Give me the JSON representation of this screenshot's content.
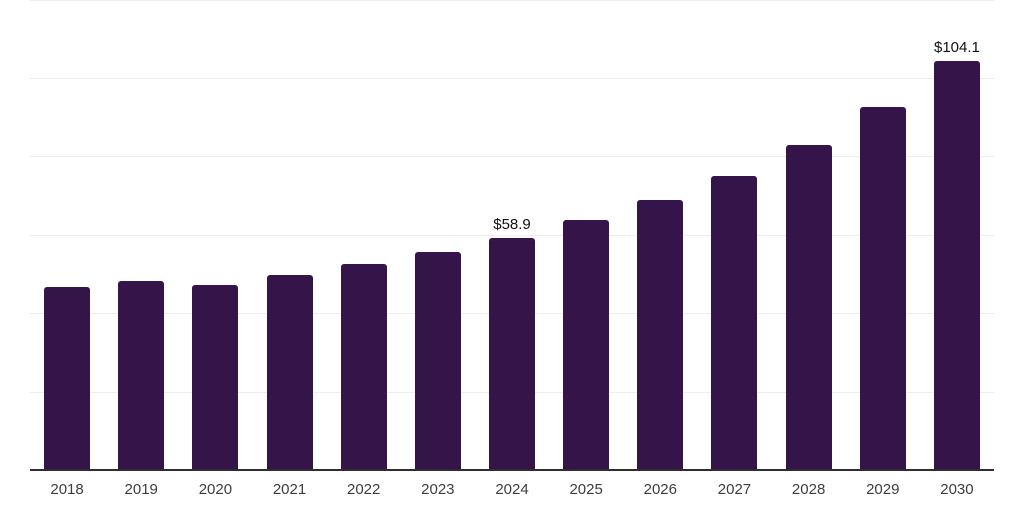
{
  "chart_data": {
    "type": "bar",
    "title": "",
    "xlabel": "",
    "ylabel": "",
    "categories": [
      "2018",
      "2019",
      "2020",
      "2021",
      "2022",
      "2023",
      "2024",
      "2025",
      "2026",
      "2027",
      "2028",
      "2029",
      "2030"
    ],
    "values": [
      46.4,
      48.0,
      46.9,
      49.4,
      52.3,
      55.3,
      58.9,
      63.5,
      68.7,
      74.8,
      82.7,
      92.4,
      104.1
    ],
    "data_labels": [
      {
        "category": "2024",
        "text": "$58.9"
      },
      {
        "category": "2030",
        "text": "$104.1"
      }
    ],
    "ylim": [
      0,
      120
    ],
    "grid_step": 20,
    "gridlines": "horizontal",
    "legend": "none",
    "colors": {
      "bar": "#351449",
      "axis": "#2e2e2e",
      "gridline": "#ededed",
      "tick_label": "#3d3d3d",
      "data_label": "#111111"
    }
  }
}
